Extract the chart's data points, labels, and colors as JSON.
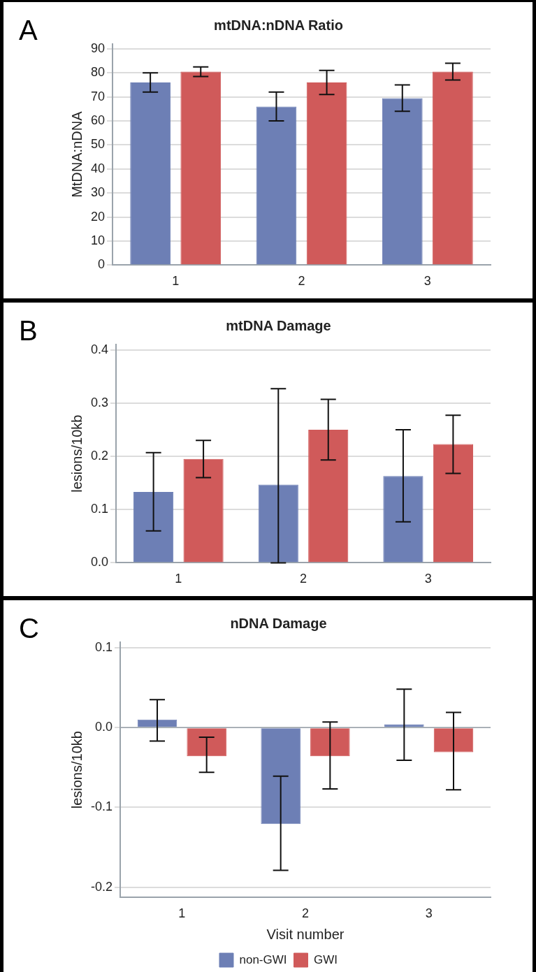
{
  "chart_data": [
    {
      "type": "bar",
      "title": "mtDNA:nDNA Ratio",
      "ylabel": "MtDNA:nDNA",
      "annotations": [
        "A"
      ],
      "categories": [
        "1",
        "2",
        "3"
      ],
      "ylim": [
        0,
        92
      ],
      "yticks": [
        0,
        10,
        20,
        30,
        40,
        50,
        60,
        70,
        80,
        90
      ],
      "grid": "y",
      "legend": false,
      "series": [
        {
          "color": "#6d7fb5",
          "values": [
            76,
            66,
            69.5
          ],
          "errors": [
            [
              72,
              80
            ],
            [
              60,
              72
            ],
            [
              64,
              75
            ]
          ]
        },
        {
          "color": "#d05a5a",
          "values": [
            80.5,
            76,
            80.5
          ],
          "errors": [
            [
              78.5,
              82.5
            ],
            [
              71,
              81
            ],
            [
              77,
              84
            ]
          ]
        }
      ]
    },
    {
      "type": "bar",
      "title": "mtDNA Damage",
      "ylabel": "lesions/10kb",
      "annotations": [
        "B"
      ],
      "categories": [
        "1",
        "2",
        "3"
      ],
      "ylim": [
        0,
        0.41
      ],
      "yticks": [
        {
          "value": 0,
          "label": "0.0"
        },
        0.1,
        0.2,
        0.3,
        0.4
      ],
      "grid": "y",
      "legend": false,
      "series": [
        {
          "color": "#6d7fb5",
          "values": [
            0.133,
            0.147,
            0.163
          ],
          "errors": [
            [
              0.06,
              0.207
            ],
            [
              0,
              0.327
            ],
            [
              0.077,
              0.25
            ]
          ]
        },
        {
          "color": "#d05a5a",
          "values": [
            0.195,
            0.25,
            0.223
          ],
          "errors": [
            [
              0.16,
              0.23
            ],
            [
              0.193,
              0.307
            ],
            [
              0.168,
              0.277
            ]
          ]
        }
      ]
    },
    {
      "type": "bar",
      "title": "nDNA Damage",
      "xlabel": "Visit number",
      "ylabel": "lesions/10kb",
      "annotations": [
        "C"
      ],
      "categories": [
        "1",
        "2",
        "3"
      ],
      "ylim": [
        -0.213,
        0.107
      ],
      "yticks": [
        -0.2,
        -0.1,
        {
          "value": 0,
          "label": "0.0"
        },
        0.1
      ],
      "grid": "y",
      "legend": "bottom",
      "series": [
        {
          "name": "non-GWI",
          "color": "#6d7fb5",
          "values": [
            0.01,
            -0.121,
            0.004
          ],
          "errors": [
            [
              -0.017,
              0.035
            ],
            [
              -0.179,
              -0.061
            ],
            [
              -0.041,
              0.048
            ]
          ]
        },
        {
          "name": "GWI",
          "color": "#d05a5a",
          "values": [
            -0.036,
            -0.036,
            -0.031
          ],
          "errors": [
            [
              -0.056,
              -0.012
            ],
            [
              -0.077,
              0.007
            ],
            [
              -0.078,
              0.019
            ]
          ]
        }
      ]
    }
  ]
}
